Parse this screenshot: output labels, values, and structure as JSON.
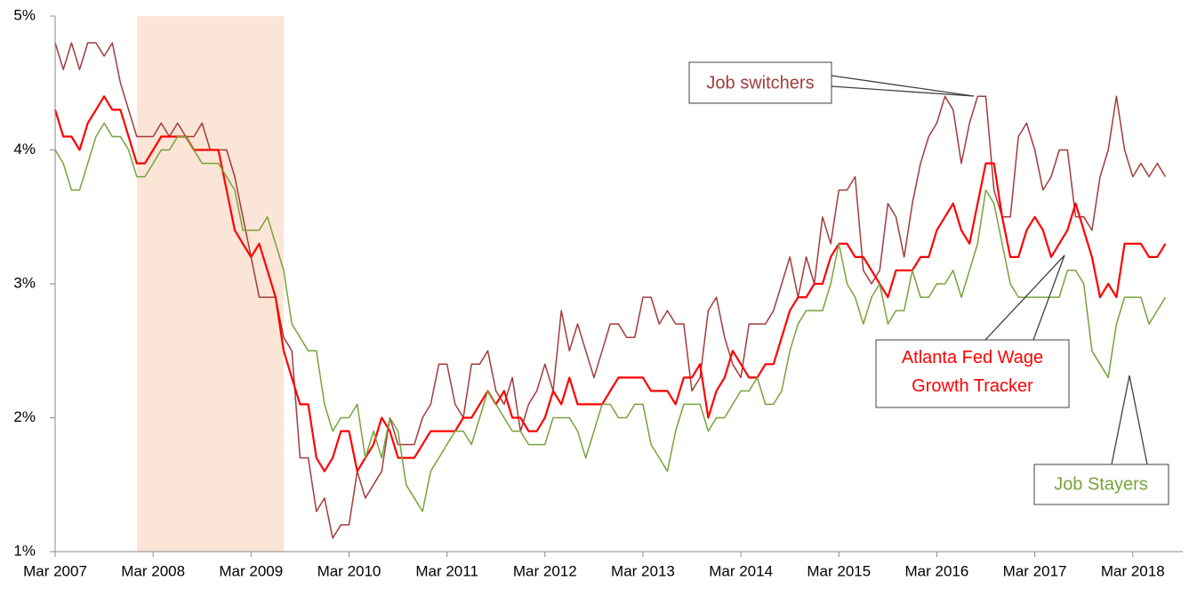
{
  "chart_data": {
    "type": "line",
    "categories": [
      "Mar 2007",
      null,
      null,
      null,
      null,
      null,
      null,
      null,
      null,
      null,
      null,
      null,
      "Mar 2008",
      null,
      null,
      null,
      null,
      null,
      null,
      null,
      null,
      null,
      null,
      null,
      "Mar 2009",
      null,
      null,
      null,
      null,
      null,
      null,
      null,
      null,
      null,
      null,
      null,
      "Mar 2010",
      null,
      null,
      null,
      null,
      null,
      null,
      null,
      null,
      null,
      null,
      null,
      "Mar 2011",
      null,
      null,
      null,
      null,
      null,
      null,
      null,
      null,
      null,
      null,
      null,
      "Mar 2012",
      null,
      null,
      null,
      null,
      null,
      null,
      null,
      null,
      null,
      null,
      null,
      "Mar 2013",
      null,
      null,
      null,
      null,
      null,
      null,
      null,
      null,
      null,
      null,
      null,
      "Mar 2014",
      null,
      null,
      null,
      null,
      null,
      null,
      null,
      null,
      null,
      null,
      null,
      "Mar 2015",
      null,
      null,
      null,
      null,
      null,
      null,
      null,
      null,
      null,
      null,
      null,
      "Mar 2016",
      null,
      null,
      null,
      null,
      null,
      null,
      null,
      null,
      null,
      null,
      null,
      "Mar 2017",
      null,
      null,
      null,
      null,
      null,
      null,
      null,
      null,
      null,
      null,
      null,
      "Mar 2018",
      null,
      null,
      null,
      null
    ],
    "series": [
      {
        "name": "Job switchers",
        "color": "#a33b3b",
        "values": [
          4.8,
          4.6,
          4.8,
          4.6,
          4.8,
          4.8,
          4.7,
          4.8,
          4.5,
          4.3,
          4.1,
          4.1,
          4.1,
          4.2,
          4.1,
          4.2,
          4.1,
          4.1,
          4.2,
          4.0,
          4.0,
          4.0,
          3.8,
          3.5,
          3.2,
          2.9,
          2.9,
          2.9,
          2.6,
          2.5,
          1.7,
          1.7,
          1.3,
          1.4,
          1.1,
          1.2,
          1.2,
          1.6,
          1.4,
          1.5,
          1.6,
          2.0,
          1.8,
          1.8,
          1.8,
          2.0,
          2.1,
          2.4,
          2.4,
          2.1,
          2.0,
          2.4,
          2.4,
          2.5,
          2.2,
          2.1,
          2.3,
          1.9,
          2.1,
          2.2,
          2.4,
          2.2,
          2.8,
          2.5,
          2.7,
          2.5,
          2.3,
          2.5,
          2.7,
          2.7,
          2.6,
          2.6,
          2.9,
          2.9,
          2.7,
          2.8,
          2.7,
          2.7,
          2.2,
          2.3,
          2.8,
          2.9,
          2.6,
          2.4,
          2.3,
          2.7,
          2.7,
          2.7,
          2.8,
          3.0,
          3.2,
          2.9,
          3.2,
          3.0,
          3.5,
          3.3,
          3.7,
          3.7,
          3.8,
          3.1,
          3.0,
          3.1,
          3.6,
          3.5,
          3.2,
          3.6,
          3.9,
          4.1,
          4.2,
          4.4,
          4.3,
          3.9,
          4.2,
          4.4,
          4.4,
          3.7,
          3.5,
          3.5,
          4.1,
          4.2,
          4.0,
          3.7,
          3.8,
          4.0,
          4.0,
          3.5,
          3.5,
          3.4,
          3.8,
          4.0,
          4.4,
          4.0,
          3.8,
          3.9,
          3.8,
          3.9,
          3.8
        ]
      },
      {
        "name": "Atlanta Fed Wage Growth Tracker",
        "color": "#ff0000",
        "values": [
          4.3,
          4.1,
          4.1,
          4.0,
          4.2,
          4.3,
          4.4,
          4.3,
          4.3,
          4.1,
          3.9,
          3.9,
          4.0,
          4.1,
          4.1,
          4.1,
          4.1,
          4.0,
          4.0,
          4.0,
          4.0,
          3.7,
          3.4,
          3.3,
          3.2,
          3.3,
          3.1,
          2.9,
          2.5,
          2.3,
          2.1,
          2.1,
          1.7,
          1.6,
          1.7,
          1.9,
          1.9,
          1.6,
          1.7,
          1.8,
          2.0,
          1.9,
          1.7,
          1.7,
          1.7,
          1.8,
          1.9,
          1.9,
          1.9,
          1.9,
          2.0,
          2.0,
          2.1,
          2.2,
          2.1,
          2.2,
          2.0,
          2.0,
          1.9,
          1.9,
          2.0,
          2.2,
          2.1,
          2.3,
          2.1,
          2.1,
          2.1,
          2.1,
          2.2,
          2.3,
          2.3,
          2.3,
          2.3,
          2.2,
          2.2,
          2.2,
          2.1,
          2.3,
          2.3,
          2.4,
          2.0,
          2.2,
          2.3,
          2.5,
          2.4,
          2.3,
          2.3,
          2.4,
          2.4,
          2.6,
          2.8,
          2.9,
          2.9,
          3.0,
          3.0,
          3.2,
          3.3,
          3.3,
          3.2,
          3.2,
          3.1,
          3.0,
          2.9,
          3.1,
          3.1,
          3.1,
          3.2,
          3.2,
          3.4,
          3.5,
          3.6,
          3.4,
          3.3,
          3.6,
          3.9,
          3.9,
          3.5,
          3.2,
          3.2,
          3.4,
          3.5,
          3.4,
          3.2,
          3.3,
          3.4,
          3.6,
          3.4,
          3.2,
          2.9,
          3.0,
          2.9,
          3.3,
          3.3,
          3.3,
          3.2,
          3.2,
          3.3
        ]
      },
      {
        "name": "Job Stayers",
        "color": "#77a33a",
        "values": [
          4.0,
          3.9,
          3.7,
          3.7,
          3.9,
          4.1,
          4.2,
          4.1,
          4.1,
          4.0,
          3.8,
          3.8,
          3.9,
          4.0,
          4.0,
          4.1,
          4.1,
          4.0,
          3.9,
          3.9,
          3.9,
          3.8,
          3.7,
          3.4,
          3.4,
          3.4,
          3.5,
          3.3,
          3.1,
          2.7,
          2.6,
          2.5,
          2.5,
          2.1,
          1.9,
          2.0,
          2.0,
          2.1,
          1.7,
          1.9,
          1.7,
          2.0,
          1.9,
          1.5,
          1.4,
          1.3,
          1.6,
          1.7,
          1.8,
          1.9,
          1.9,
          1.8,
          2.0,
          2.2,
          2.1,
          2.0,
          1.9,
          1.9,
          1.8,
          1.8,
          1.8,
          2.0,
          2.0,
          2.0,
          1.9,
          1.7,
          1.9,
          2.1,
          2.1,
          2.0,
          2.0,
          2.1,
          2.1,
          1.8,
          1.7,
          1.6,
          1.9,
          2.1,
          2.1,
          2.1,
          1.9,
          2.0,
          2.0,
          2.1,
          2.2,
          2.2,
          2.3,
          2.1,
          2.1,
          2.2,
          2.5,
          2.7,
          2.8,
          2.8,
          2.8,
          3.0,
          3.3,
          3.0,
          2.9,
          2.7,
          2.9,
          3.0,
          2.7,
          2.8,
          2.8,
          3.1,
          2.9,
          2.9,
          3.0,
          3.0,
          3.1,
          2.9,
          3.1,
          3.3,
          3.7,
          3.6,
          3.3,
          3.0,
          2.9,
          2.9,
          2.9,
          2.9,
          2.9,
          2.9,
          3.1,
          3.1,
          3.0,
          2.5,
          2.4,
          2.3,
          2.7,
          2.9,
          2.9,
          2.9,
          2.7,
          2.8,
          2.9
        ]
      }
    ],
    "ylim": [
      1,
      5
    ],
    "yticks": [
      {
        "value": 1,
        "label": "1%"
      },
      {
        "value": 2,
        "label": "2%"
      },
      {
        "value": 3,
        "label": "3%"
      },
      {
        "value": 4,
        "label": "4%"
      },
      {
        "value": 5,
        "label": "5%"
      }
    ],
    "grid": false
  }
}
